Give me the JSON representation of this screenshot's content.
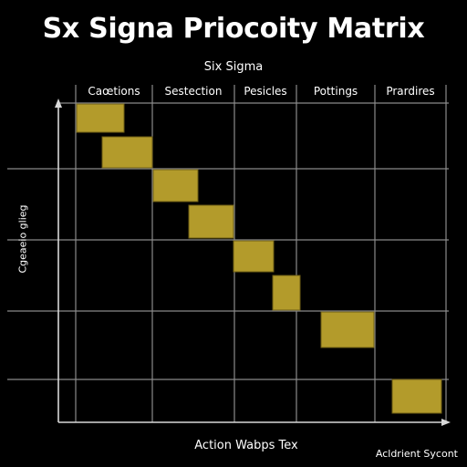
{
  "title": "Sx Signa Priocoity Matrix",
  "subtitle": "Six Sigma",
  "columns": [
    "Caœtions",
    "Sestection",
    "Pesicles",
    "Pottings",
    "Prardires"
  ],
  "y_axis_label": "Cgeaeio glieg",
  "x_axis_label": "Action Wabps Tex",
  "footer_note": "Acldrient Sycont",
  "colors": {
    "background": "#000000",
    "grid": "#8a8a8a",
    "cell_fill": "#b39b2b",
    "cell_stroke": "#6e5e14",
    "text": "#ffffff"
  }
}
